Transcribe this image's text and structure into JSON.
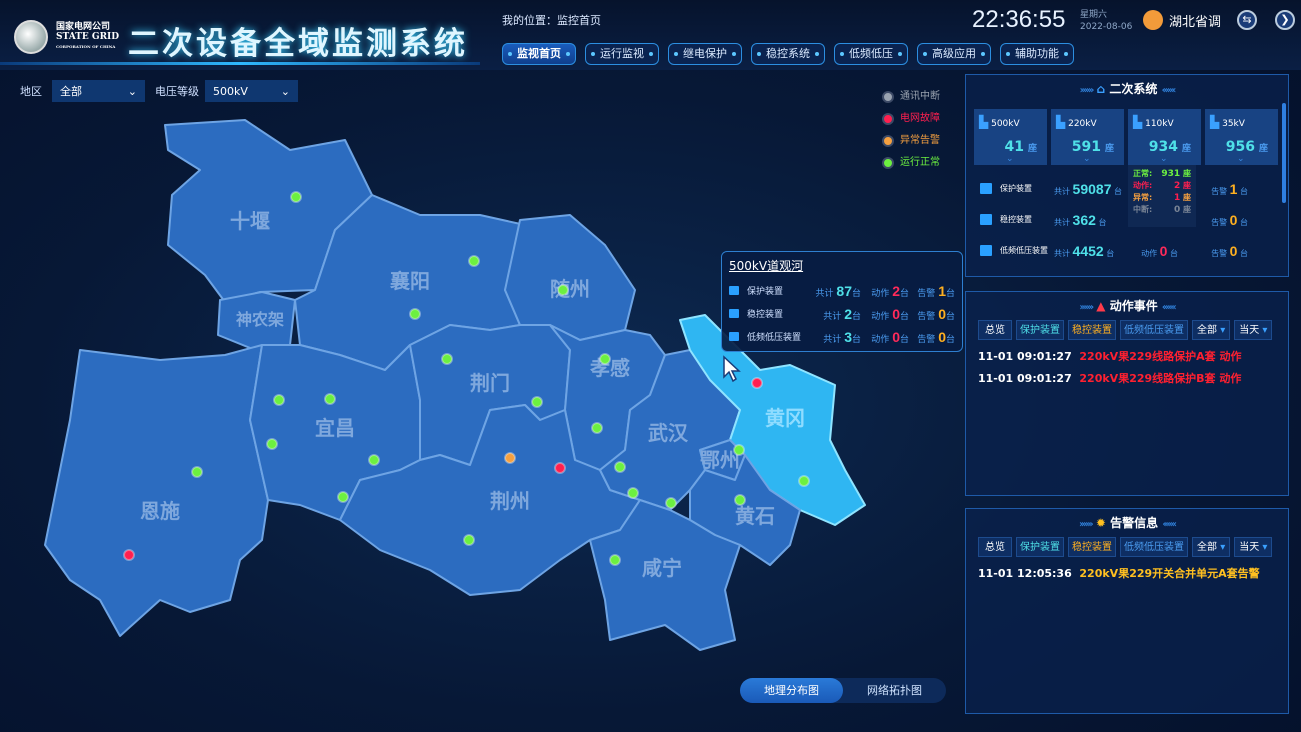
{
  "header": {
    "logo_cn": "国家电网公司",
    "logo_en": "STATE GRID",
    "logo_sub": "CORPORATION OF CHINA",
    "title": "二次设备全域监测系统",
    "location": "我的位置：监控首页",
    "time": "22:36:55",
    "weekday": "星期六",
    "date": "2022-08-06",
    "user": "湖北省调"
  },
  "nav": [
    "监视首页",
    "运行监视",
    "继电保护",
    "稳控系统",
    "低频低压",
    "高级应用",
    "辅助功能"
  ],
  "filters": {
    "region_label": "地区",
    "region_value": "全部",
    "voltage_label": "电压等级",
    "voltage_value": "500kV"
  },
  "legend": [
    {
      "label": "通讯中断",
      "color": "#9aa3b0"
    },
    {
      "label": "电网故障",
      "color": "#ff1f4f"
    },
    {
      "label": "异常告警",
      "color": "#f5a040"
    },
    {
      "label": "运行正常",
      "color": "#6cf040"
    }
  ],
  "map": {
    "regions": [
      "十堰",
      "神农架",
      "襄阳",
      "随州",
      "恩施",
      "宜昌",
      "荆门",
      "孝感",
      "荆州",
      "武汉",
      "黄冈",
      "鄂州",
      "黄石",
      "咸宁"
    ],
    "selected": "黄冈"
  },
  "tooltip": {
    "title": "500kV道观河",
    "total_label": "共计",
    "action_label": "动作",
    "alarm_label": "告警",
    "unit": "台",
    "rows": [
      {
        "name": "保护装置",
        "total": "87",
        "action": "2",
        "alarm": "1"
      },
      {
        "name": "稳控装置",
        "total": "2",
        "action": "0",
        "alarm": "0"
      },
      {
        "name": "低频低压装置",
        "total": "3",
        "action": "0",
        "alarm": "0"
      }
    ]
  },
  "secondary": {
    "title": "二次系统",
    "unit_station": "座",
    "unit_dev": "台",
    "total_label": "共计",
    "action_label": "动作",
    "alarm_label": "告警",
    "levels": [
      {
        "kv": "500kV",
        "count": "41"
      },
      {
        "kv": "220kV",
        "count": "591"
      },
      {
        "kv": "110kV",
        "count": "934"
      },
      {
        "kv": "35kV",
        "count": "956"
      }
    ],
    "devices": [
      {
        "name": "保护装置",
        "total": "59087",
        "action": "",
        "alarm": "1"
      },
      {
        "name": "稳控装置",
        "total": "362",
        "action": "",
        "alarm": "0"
      },
      {
        "name": "低频低压装置",
        "total": "4452",
        "action": "0",
        "alarm": "0"
      }
    ],
    "popup": [
      {
        "label": "正常:",
        "value": "931",
        "unit": "座"
      },
      {
        "label": "动作:",
        "value": "2",
        "unit": "座"
      },
      {
        "label": "异常:",
        "value": "1",
        "unit": "座"
      },
      {
        "label": "中断:",
        "value": "0",
        "unit": "座"
      }
    ]
  },
  "events": {
    "title": "动作事件",
    "filters": [
      "总览",
      "保护装置",
      "稳控装置",
      "低频低压装置"
    ],
    "scope": "全部",
    "period": "当天",
    "items": [
      {
        "time": "11-01 09:01:27",
        "text": "220kV果229线路保护A套 动作"
      },
      {
        "time": "11-01 09:01:27",
        "text": "220kV果229线路保护B套 动作"
      }
    ]
  },
  "alarms": {
    "title": "告警信息",
    "filters": [
      "总览",
      "保护装置",
      "稳控装置",
      "低频低压装置"
    ],
    "scope": "全部",
    "period": "当天",
    "items": [
      {
        "time": "11-01 12:05:36",
        "text": "220kV果229开关合并单元A套告警"
      }
    ]
  },
  "view_toggle": {
    "options": [
      "地理分布图",
      "网络拓扑图"
    ],
    "active": "地理分布图"
  }
}
